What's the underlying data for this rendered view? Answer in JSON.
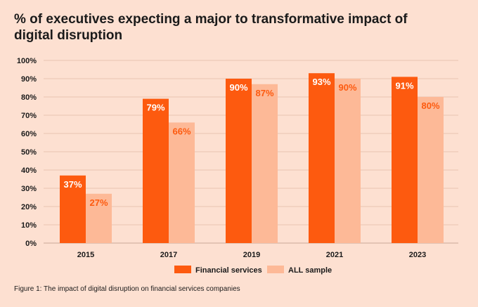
{
  "chart_data": {
    "type": "bar",
    "title": "% of executives expecting a major to transformative impact of digital disruption",
    "categories": [
      "2015",
      "2017",
      "2019",
      "2021",
      "2023"
    ],
    "series": [
      {
        "name": "Financial services",
        "values": [
          37,
          79,
          90,
          93,
          91
        ],
        "color": "#fd5a0f",
        "label_color": "#ffffff"
      },
      {
        "name": "ALL sample",
        "values": [
          27,
          66,
          87,
          90,
          80
        ],
        "color": "#fdb997",
        "label_color": "#fd5a0f"
      }
    ],
    "data_labels": [
      [
        "37%",
        "79%",
        "90%",
        "93%",
        "91%"
      ],
      [
        "27%",
        "66%",
        "87%",
        "90%",
        "80%"
      ]
    ],
    "y_ticks": [
      "0%",
      "10%",
      "20%",
      "30%",
      "40%",
      "50%",
      "60%",
      "70%",
      "80%",
      "90%",
      "100%"
    ],
    "ylim": [
      0,
      100
    ],
    "grid": true,
    "legend_position": "bottom-center",
    "xlabel": "",
    "ylabel": ""
  },
  "caption": "Figure 1: The impact of digital disruption on financial services companies"
}
